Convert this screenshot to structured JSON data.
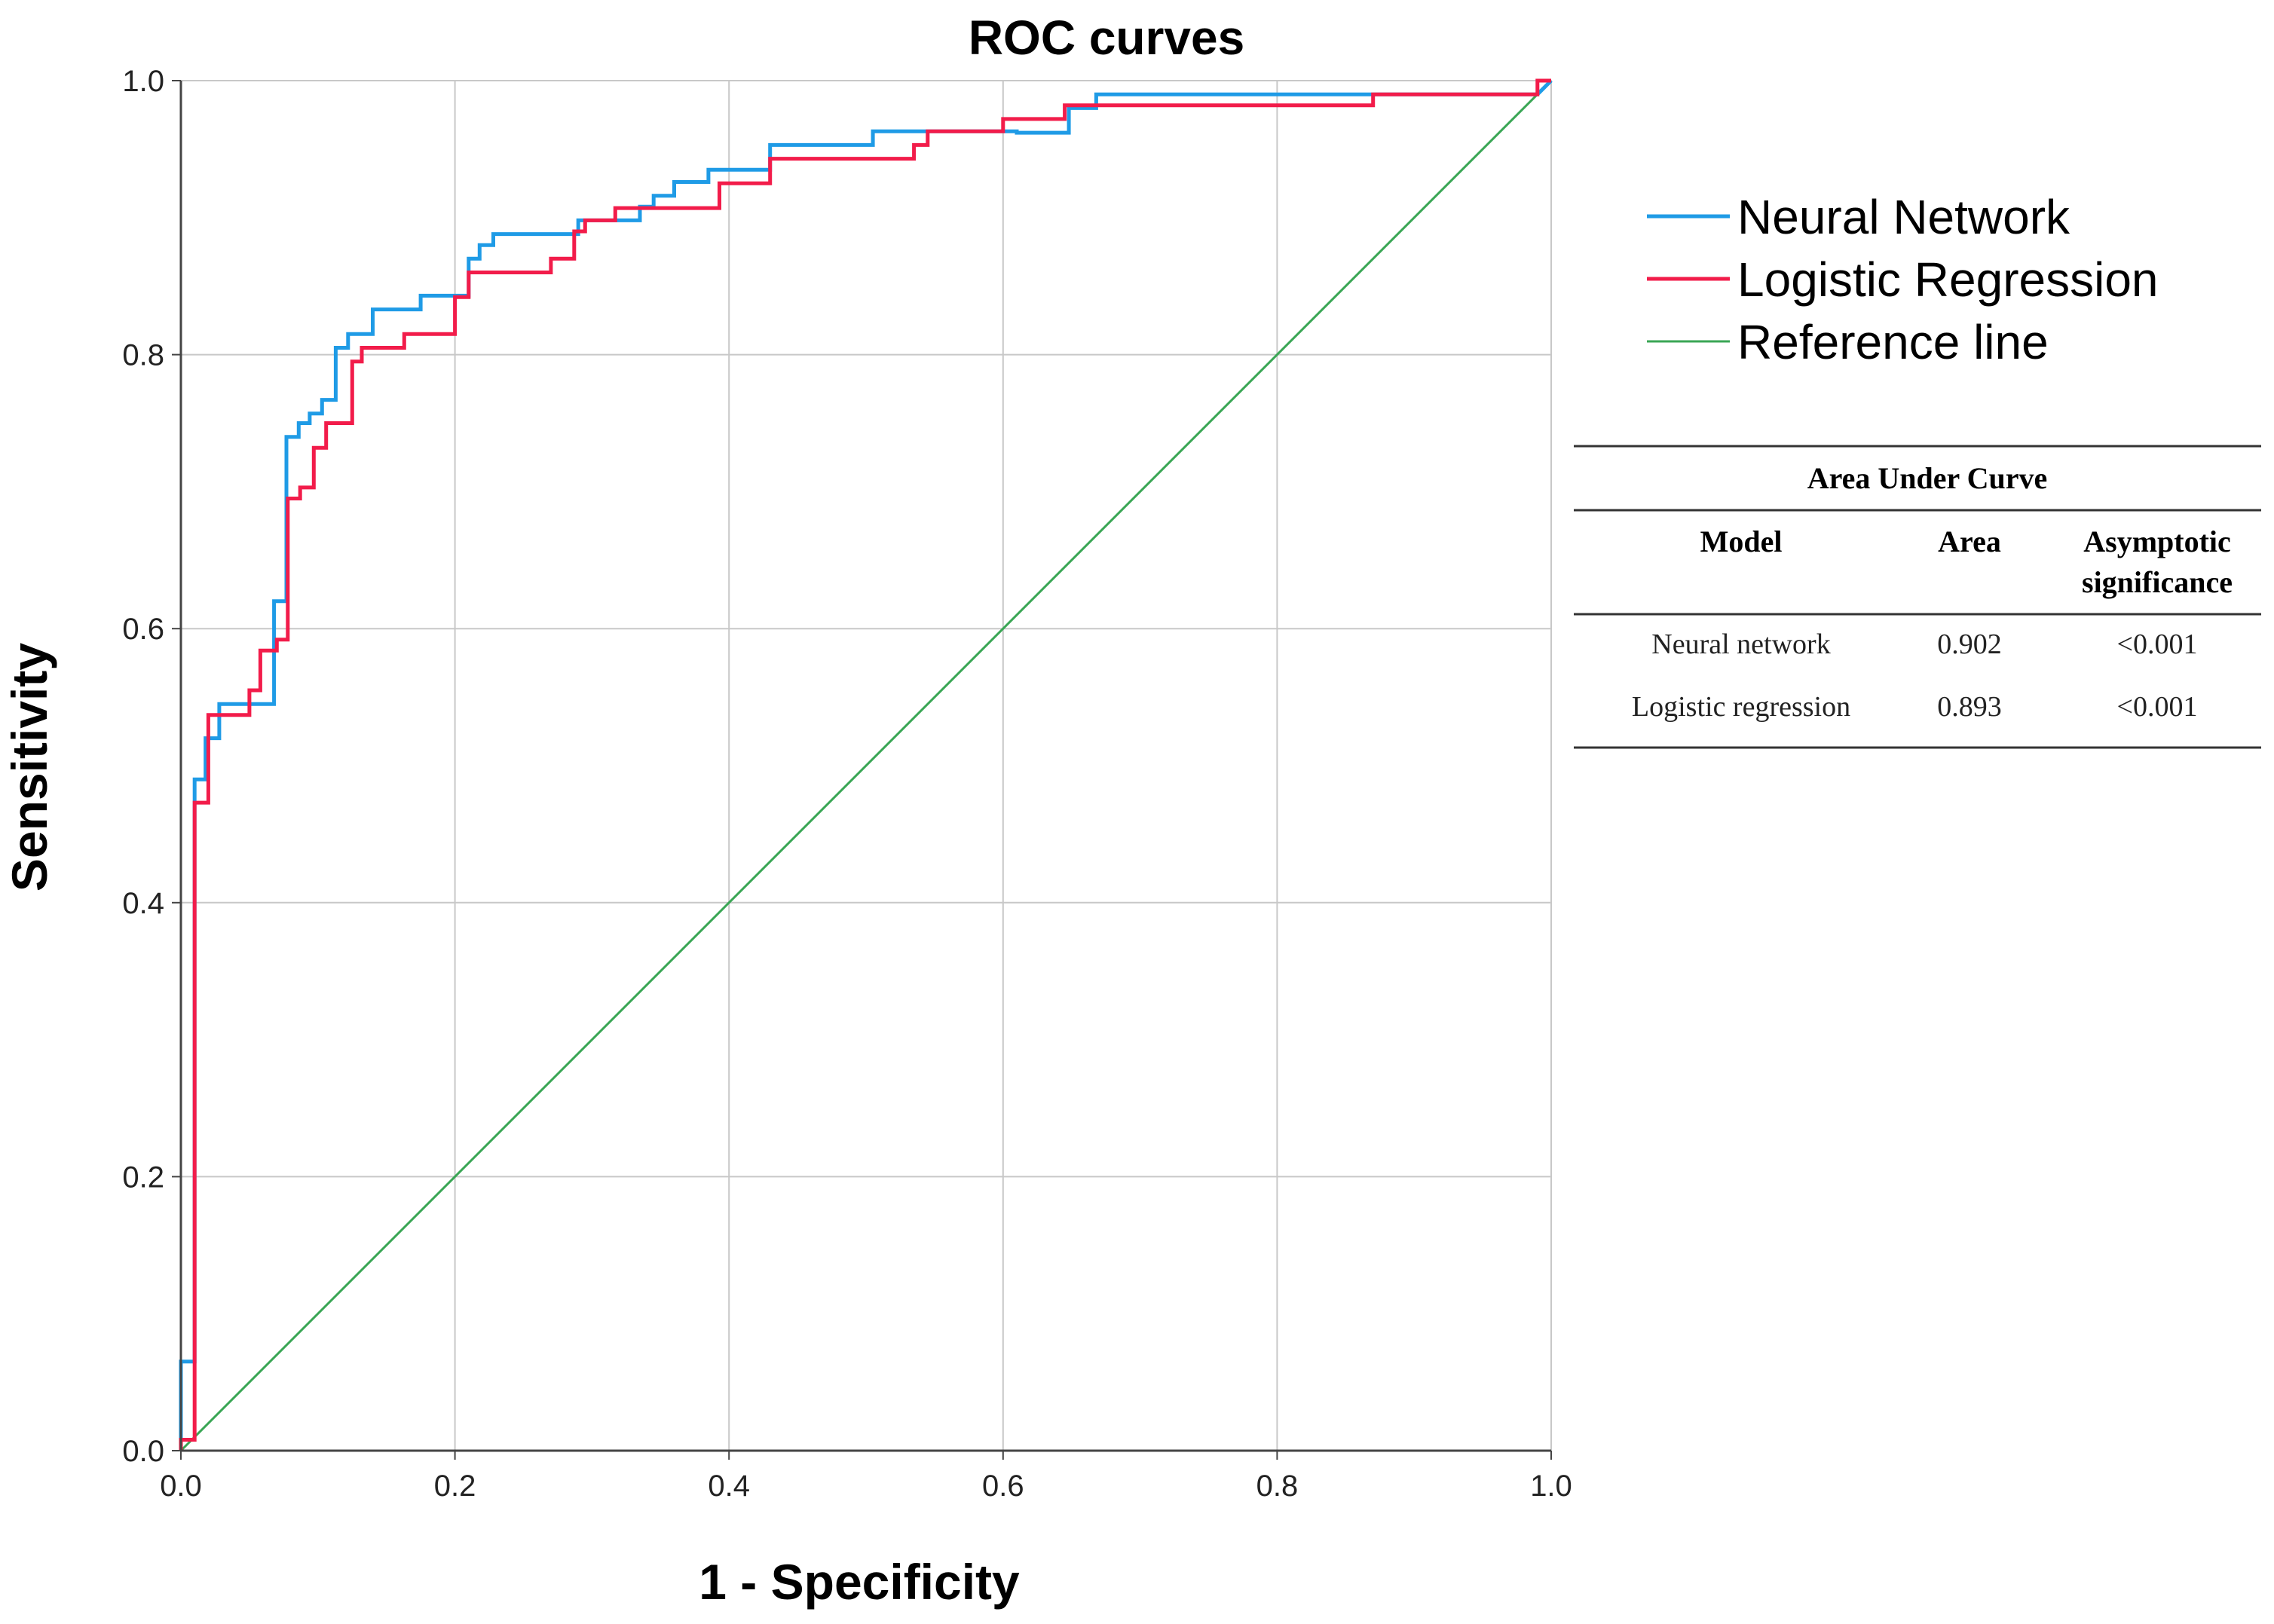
{
  "chart_data": {
    "type": "line",
    "title": "ROC curves",
    "xlabel": "1 - Specificity",
    "ylabel": "Sensitivity",
    "xlim": [
      0,
      1
    ],
    "ylim": [
      0,
      1
    ],
    "grid": true,
    "legend_position": "top-right",
    "x_tick_labels": [
      "0.0",
      "0.2",
      "0.4",
      "0.6",
      "0.8",
      "1.0"
    ],
    "y_tick_labels": [
      "0.0",
      "0.2",
      "0.4",
      "0.6",
      "0.8",
      "1.0"
    ],
    "series": [
      {
        "name": "Neural Network",
        "color": "#1f9be6",
        "points": [
          [
            0,
            0
          ],
          [
            0,
            0.065
          ],
          [
            0.01,
            0.065
          ],
          [
            0.01,
            0.49
          ],
          [
            0.018,
            0.49
          ],
          [
            0.018,
            0.52
          ],
          [
            0.028,
            0.52
          ],
          [
            0.028,
            0.545
          ],
          [
            0.068,
            0.545
          ],
          [
            0.068,
            0.62
          ],
          [
            0.077,
            0.62
          ],
          [
            0.077,
            0.74
          ],
          [
            0.086,
            0.74
          ],
          [
            0.086,
            0.75
          ],
          [
            0.094,
            0.75
          ],
          [
            0.094,
            0.757
          ],
          [
            0.103,
            0.757
          ],
          [
            0.103,
            0.767
          ],
          [
            0.113,
            0.767
          ],
          [
            0.113,
            0.805
          ],
          [
            0.122,
            0.805
          ],
          [
            0.122,
            0.815
          ],
          [
            0.14,
            0.815
          ],
          [
            0.14,
            0.833
          ],
          [
            0.175,
            0.833
          ],
          [
            0.175,
            0.843
          ],
          [
            0.21,
            0.843
          ],
          [
            0.21,
            0.87
          ],
          [
            0.218,
            0.87
          ],
          [
            0.218,
            0.88
          ],
          [
            0.228,
            0.88
          ],
          [
            0.228,
            0.888
          ],
          [
            0.29,
            0.888
          ],
          [
            0.29,
            0.898
          ],
          [
            0.335,
            0.898
          ],
          [
            0.335,
            0.908
          ],
          [
            0.345,
            0.908
          ],
          [
            0.345,
            0.916
          ],
          [
            0.36,
            0.916
          ],
          [
            0.36,
            0.926
          ],
          [
            0.385,
            0.926
          ],
          [
            0.385,
            0.935
          ],
          [
            0.43,
            0.935
          ],
          [
            0.43,
            0.953
          ],
          [
            0.505,
            0.953
          ],
          [
            0.505,
            0.963
          ],
          [
            0.61,
            0.963
          ],
          [
            0.61,
            0.962
          ],
          [
            0.648,
            0.962
          ],
          [
            0.648,
            0.98
          ],
          [
            0.668,
            0.98
          ],
          [
            0.668,
            0.99
          ],
          [
            0.99,
            0.99
          ],
          [
            1,
            1
          ]
        ]
      },
      {
        "name": "Logistic Regression",
        "color": "#f21c4a",
        "points": [
          [
            0,
            0
          ],
          [
            0,
            0.008
          ],
          [
            0.01,
            0.008
          ],
          [
            0.01,
            0.473
          ],
          [
            0.02,
            0.473
          ],
          [
            0.02,
            0.537
          ],
          [
            0.05,
            0.537
          ],
          [
            0.05,
            0.555
          ],
          [
            0.058,
            0.555
          ],
          [
            0.058,
            0.584
          ],
          [
            0.07,
            0.584
          ],
          [
            0.07,
            0.592
          ],
          [
            0.078,
            0.592
          ],
          [
            0.078,
            0.695
          ],
          [
            0.087,
            0.695
          ],
          [
            0.087,
            0.703
          ],
          [
            0.097,
            0.703
          ],
          [
            0.097,
            0.732
          ],
          [
            0.106,
            0.732
          ],
          [
            0.106,
            0.75
          ],
          [
            0.125,
            0.75
          ],
          [
            0.125,
            0.795
          ],
          [
            0.132,
            0.795
          ],
          [
            0.132,
            0.805
          ],
          [
            0.163,
            0.805
          ],
          [
            0.163,
            0.815
          ],
          [
            0.2,
            0.815
          ],
          [
            0.2,
            0.842
          ],
          [
            0.21,
            0.842
          ],
          [
            0.21,
            0.86
          ],
          [
            0.27,
            0.86
          ],
          [
            0.27,
            0.87
          ],
          [
            0.287,
            0.87
          ],
          [
            0.287,
            0.89
          ],
          [
            0.295,
            0.89
          ],
          [
            0.295,
            0.898
          ],
          [
            0.317,
            0.898
          ],
          [
            0.317,
            0.907
          ],
          [
            0.393,
            0.907
          ],
          [
            0.393,
            0.925
          ],
          [
            0.43,
            0.925
          ],
          [
            0.43,
            0.943
          ],
          [
            0.535,
            0.943
          ],
          [
            0.535,
            0.953
          ],
          [
            0.545,
            0.953
          ],
          [
            0.545,
            0.963
          ],
          [
            0.6,
            0.963
          ],
          [
            0.6,
            0.972
          ],
          [
            0.645,
            0.972
          ],
          [
            0.645,
            0.982
          ],
          [
            0.87,
            0.982
          ],
          [
            0.87,
            0.99
          ],
          [
            0.99,
            0.99
          ],
          [
            0.99,
            1
          ],
          [
            1,
            1
          ]
        ]
      },
      {
        "name": "Reference line",
        "color": "#3aa655",
        "points": [
          [
            0,
            0
          ],
          [
            1,
            1
          ]
        ]
      }
    ],
    "auc_table": {
      "title": "Area Under Curve",
      "columns": [
        "Model",
        "Area",
        "Asymptotic significance"
      ],
      "col_asym_line1": "Asymptotic",
      "col_asym_line2": "significance",
      "rows": [
        {
          "model": "Neural network",
          "area": "0.902",
          "sig": "<0.001"
        },
        {
          "model": "Logistic regression",
          "area": "0.893",
          "sig": "<0.001"
        }
      ]
    }
  }
}
